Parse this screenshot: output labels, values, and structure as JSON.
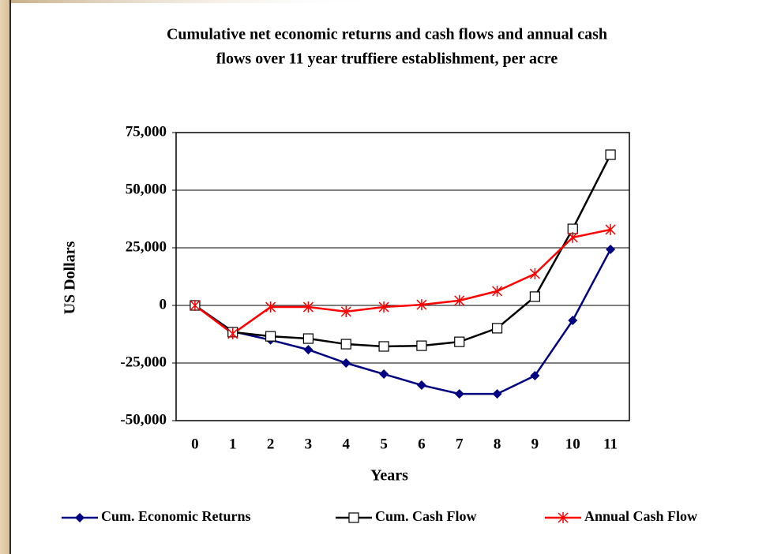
{
  "chart_data": {
    "type": "line",
    "title": [
      "Cumulative net economic returns and cash flows and annual cash",
      "flows over 11 year truffiere establishment, per acre"
    ],
    "x_label": "Years",
    "y_label": "US Dollars",
    "categories": [
      "0",
      "1",
      "2",
      "3",
      "4",
      "5",
      "6",
      "7",
      "8",
      "9",
      "10",
      "11"
    ],
    "series": [
      {
        "name": "Cum. Economic Returns",
        "color": "#000080",
        "marker": "diamond",
        "values": [
          0,
          -11300,
          -15000,
          -19200,
          -25000,
          -29800,
          -34600,
          -38400,
          -38400,
          -30500,
          -6500,
          24300
        ]
      },
      {
        "name": "Cum. Cash Flow",
        "color": "#000000",
        "marker": "square",
        "values": [
          0,
          -11600,
          -13400,
          -14400,
          -16800,
          -17800,
          -17500,
          -15800,
          -9900,
          3800,
          33200,
          65400
        ]
      },
      {
        "name": "Annual Cash Flow",
        "color": "#ff0000",
        "marker": "asterisk",
        "values": [
          0,
          -12300,
          -700,
          -700,
          -2700,
          -700,
          300,
          2100,
          6200,
          13700,
          29500,
          32900
        ]
      }
    ],
    "ylim": [
      -50000,
      75000
    ],
    "yticks": [
      {
        "value": -50000,
        "label": "-50,000"
      },
      {
        "value": -25000,
        "label": "-25,000"
      },
      0,
      {
        "value": 25000,
        "label": "25,000"
      },
      {
        "value": 50000,
        "label": "50,000"
      },
      {
        "value": 75000,
        "label": "75,000"
      }
    ],
    "grid": true,
    "legend": "bottom"
  }
}
